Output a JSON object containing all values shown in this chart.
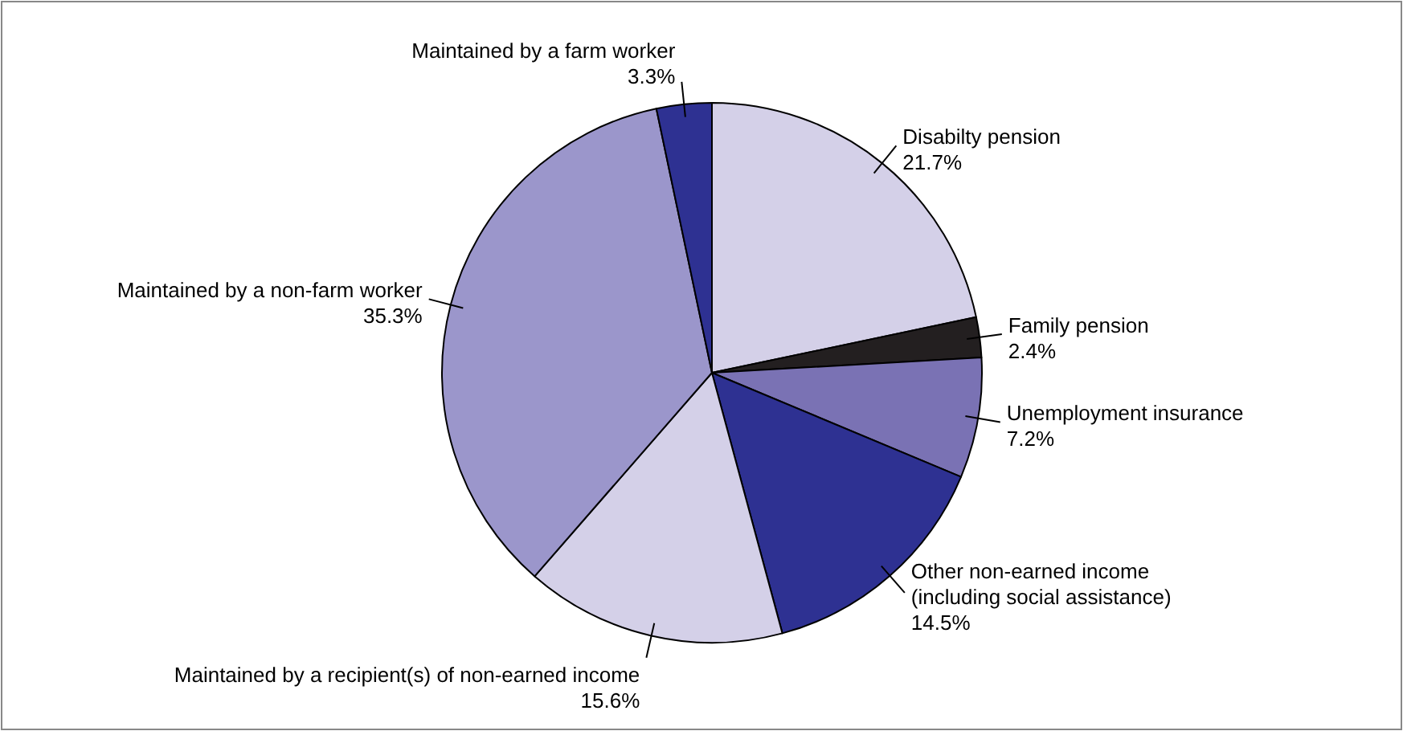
{
  "chart_data": {
    "type": "pie",
    "categories": [
      "Disabilty pension",
      "Family pension",
      "Unemployment insurance",
      "Other non-earned income\n(including social assistance)",
      "Maintained by a recipient(s) of non-earned income",
      "Maintained by a non-farm worker",
      "Maintained by a farm worker"
    ],
    "values": [
      21.7,
      2.4,
      7.2,
      14.5,
      15.6,
      35.3,
      3.3
    ],
    "colors": [
      "#d4d0e8",
      "#231f20",
      "#7a72b4",
      "#2e3192",
      "#d4d0e8",
      "#9b96cb",
      "#2e3192"
    ],
    "value_labels": [
      "21.7%",
      "2.4%",
      "7.2%",
      "14.5%",
      "15.6%",
      "35.3%",
      "3.3%"
    ]
  }
}
